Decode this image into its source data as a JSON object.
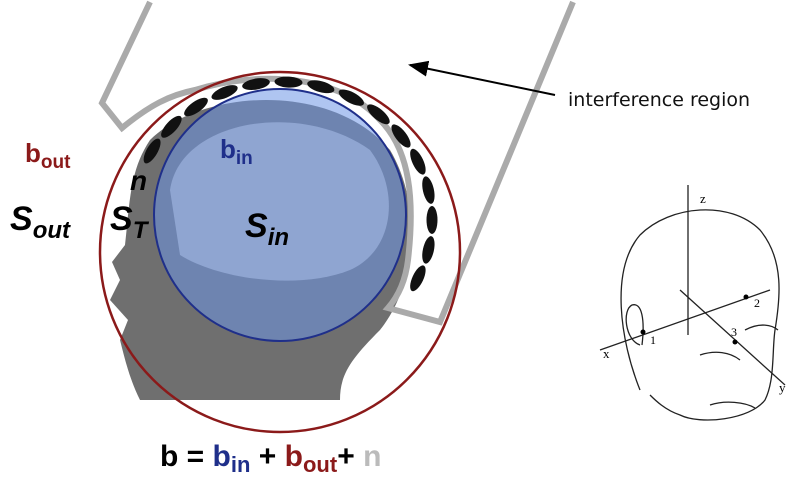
{
  "labels": {
    "interference": "interference region",
    "b_out": {
      "main": "b",
      "sub": "out"
    },
    "b_in": {
      "main": "b",
      "sub": "in"
    },
    "n": "n",
    "s_out": {
      "main": "S",
      "sub": "out"
    },
    "s_t": {
      "main": "S",
      "sub": "T"
    },
    "s_in": {
      "main": "S",
      "sub": "in"
    }
  },
  "equation": [
    "b",
    "=",
    "b",
    "in",
    "+",
    "b",
    "out",
    "+",
    "n"
  ],
  "sketch": {
    "axes": [
      "z",
      "x",
      "y"
    ],
    "points": [
      "1",
      "2",
      "3"
    ]
  }
}
